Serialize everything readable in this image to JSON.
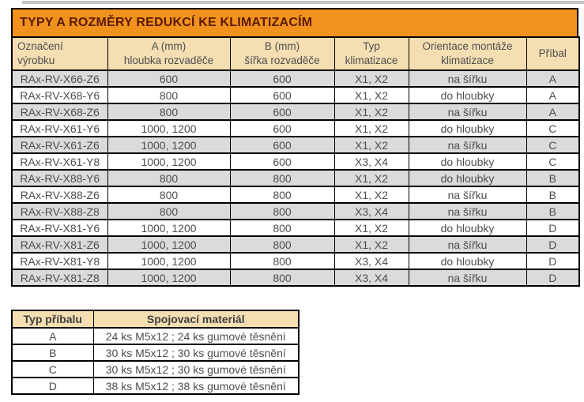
{
  "title": "TYPY A ROZMĚRY REDUKCÍ KE KLIMATIZACÍM",
  "colors": {
    "title_bg": "#F2921E",
    "title_text": "#5A1A00",
    "header_bg": "#F4DEB2",
    "alt_row_bg": "#DBDBDB",
    "text": "#4E4E4E",
    "border": "#000000"
  },
  "main_table": {
    "headers": [
      {
        "line1": "Označení",
        "line2": "výrobku"
      },
      {
        "line1": "A (mm)",
        "line2": "hloubka rozvaděče"
      },
      {
        "line1": "B (mm)",
        "line2": "šířka rozvaděče"
      },
      {
        "line1": "Typ",
        "line2": "klimatizace"
      },
      {
        "line1": "Orientace montáže",
        "line2": "klimatizace"
      },
      {
        "line1": "Příbal",
        "line2": ""
      }
    ],
    "rows": [
      [
        "RAx-RV-X66-Z6",
        "600",
        "600",
        "X1, X2",
        "na šířku",
        "A"
      ],
      [
        "RAx-RV-X68-Y6",
        "800",
        "600",
        "X1, X2",
        "do hloubky",
        "A"
      ],
      [
        "RAx-RV-X68-Z6",
        "800",
        "600",
        "X1, X2",
        "na šířku",
        "A"
      ],
      [
        "RAx-RV-X61-Y6",
        "1000, 1200",
        "600",
        "X1, X2",
        "do hloubky",
        "C"
      ],
      [
        "RAx-RV-X61-Z6",
        "1000, 1200",
        "600",
        "X1, X2",
        "na šířku",
        "C"
      ],
      [
        "RAx-RV-X61-Y8",
        "1000, 1200",
        "600",
        "X3, X4",
        "do hloubky",
        "C"
      ],
      [
        "RAx-RV-X88-Y6",
        "800",
        "800",
        "X1, X2",
        "do hloubky",
        "B"
      ],
      [
        "RAx-RV-X88-Z6",
        "800",
        "800",
        "X1, X2",
        "na šířku",
        "B"
      ],
      [
        "RAx-RV-X88-Z8",
        "800",
        "800",
        "X3, X4",
        "na šířku",
        "B"
      ],
      [
        "RAx-RV-X81-Y6",
        "1000, 1200",
        "800",
        "X1, X2",
        "do hloubky",
        "D"
      ],
      [
        "RAx-RV-X81-Z6",
        "1000, 1200",
        "800",
        "X1, X2",
        "na šířku",
        "D"
      ],
      [
        "RAx-RV-X81-Y8",
        "1000, 1200",
        "800",
        "X3, X4",
        "do hloubky",
        "D"
      ],
      [
        "RAx-RV-X81-Z8",
        "1000, 1200",
        "800",
        "X3, X4",
        "na šířku",
        "D"
      ]
    ]
  },
  "accessory_table": {
    "headers": [
      "Typ příbalu",
      "Spojovací materiál"
    ],
    "rows": [
      [
        "A",
        "24 ks M5x12 ; 24 ks gumové těsnění"
      ],
      [
        "B",
        "30 ks M5x12 ; 30 ks gumové těsnění"
      ],
      [
        "C",
        "30 ks M5x12 ; 30 ks gumové těsnění"
      ],
      [
        "D",
        "38 ks M5x12 ; 38 ks gumové těsnění"
      ]
    ]
  }
}
